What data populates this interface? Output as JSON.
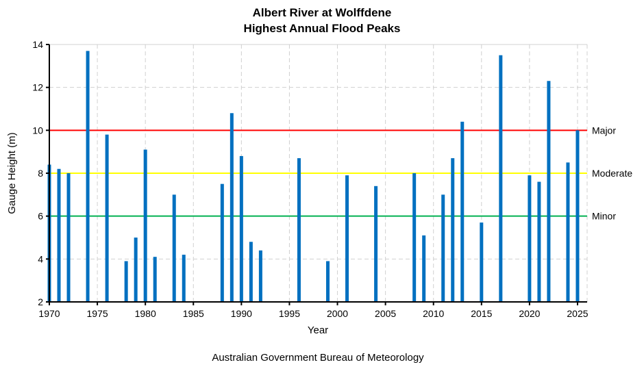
{
  "chart_data": {
    "type": "bar",
    "title": [
      "Albert River at Wolffdene",
      "Highest Annual Flood Peaks"
    ],
    "xlabel": "Year",
    "ylabel": "Gauge Height (m)",
    "footer": "Australian Government Bureau of Meteorology",
    "xlim": [
      1970,
      2026
    ],
    "ylim": [
      2,
      14
    ],
    "xticks": [
      1970,
      1975,
      1980,
      1985,
      1990,
      1995,
      2000,
      2005,
      2010,
      2015,
      2020,
      2025
    ],
    "yticks": [
      2,
      4,
      6,
      8,
      10,
      12,
      14
    ],
    "grid": true,
    "bar_color": "#0070C0",
    "x": [
      1970,
      1971,
      1972,
      1974,
      1976,
      1978,
      1979,
      1980,
      1981,
      1983,
      1984,
      1988,
      1989,
      1990,
      1991,
      1992,
      1996,
      1999,
      2001,
      2004,
      2008,
      2009,
      2011,
      2012,
      2013,
      2015,
      2017,
      2020,
      2021,
      2022,
      2024,
      2025
    ],
    "values": [
      8.4,
      8.2,
      8.0,
      13.7,
      9.8,
      3.9,
      5.0,
      9.1,
      4.1,
      7.0,
      4.2,
      7.5,
      10.8,
      8.8,
      4.8,
      4.4,
      8.7,
      3.9,
      7.9,
      7.4,
      8.0,
      5.1,
      7.0,
      8.7,
      10.4,
      5.7,
      13.5,
      7.9,
      7.6,
      12.3,
      8.5,
      10.0
    ],
    "thresholds": [
      {
        "name": "Major",
        "value": 10,
        "color": "#FF0000"
      },
      {
        "name": "Moderate",
        "value": 8,
        "color": "#FFFF00"
      },
      {
        "name": "Minor",
        "value": 6,
        "color": "#00B050"
      }
    ]
  }
}
